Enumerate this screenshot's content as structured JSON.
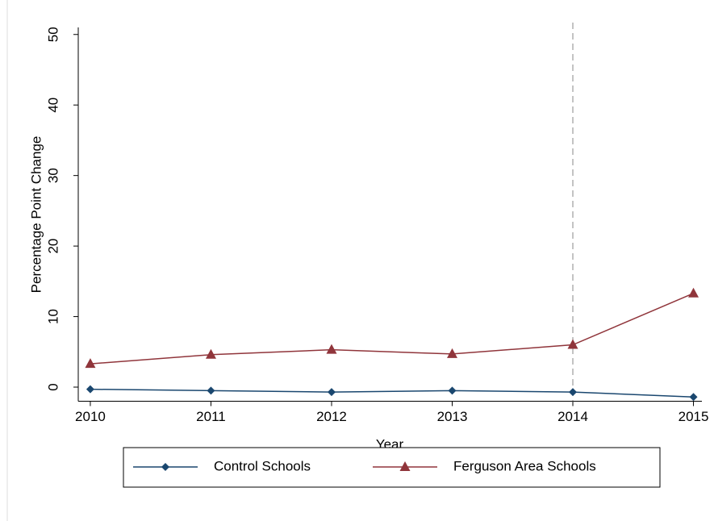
{
  "chart_data": {
    "type": "line",
    "x_label": "Year",
    "y_label": "Percentage Point Change",
    "x": [
      2010,
      2011,
      2012,
      2013,
      2014,
      2015
    ],
    "series": [
      {
        "name": "Control Schools",
        "color": "#1a476f",
        "marker": "diamond",
        "values": [
          -0.3,
          -0.5,
          -0.7,
          -0.5,
          -0.7,
          -1.4
        ]
      },
      {
        "name": "Ferguson Area Schools",
        "color": "#90353b",
        "marker": "triangle",
        "values": [
          3.3,
          4.6,
          5.3,
          4.7,
          6.0,
          13.3
        ]
      }
    ],
    "xlim": [
      2009.9,
      2015.07
    ],
    "xticks": [
      2010,
      2011,
      2012,
      2013,
      2014,
      2015
    ],
    "ylim": [
      -2,
      51
    ],
    "yticks": [
      0,
      10,
      20,
      30,
      40,
      50
    ],
    "vline": 2014,
    "legend": "bottom"
  }
}
